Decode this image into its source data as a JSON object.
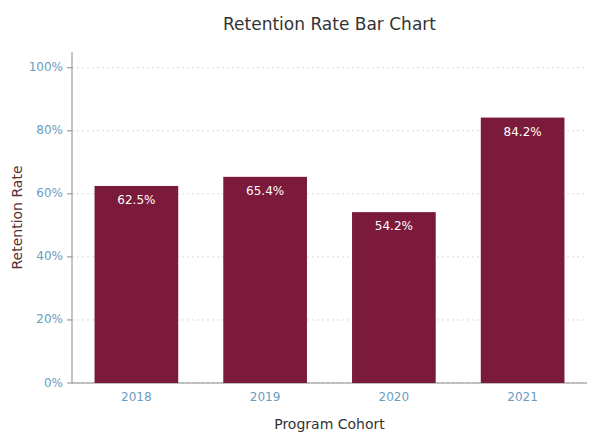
{
  "chart_data": {
    "type": "bar",
    "title": "Retention Rate Bar Chart",
    "x_label": "Program Cohort",
    "y_label": "Retention Rate",
    "categories": [
      "2018",
      "2019",
      "2020",
      "2021"
    ],
    "values": [
      62.5,
      65.4,
      54.2,
      84.2
    ],
    "value_labels": [
      "62.5%",
      "65.4%",
      "54.2%",
      "84.2%"
    ],
    "color": "#7B1A3A",
    "ylim": [
      0,
      105
    ],
    "yticks": [
      {
        "value": 0,
        "label": "0%"
      },
      {
        "value": 20,
        "label": "20%"
      },
      {
        "value": 40,
        "label": "40%"
      },
      {
        "value": 60,
        "label": "60%"
      },
      {
        "value": 80,
        "label": "80%"
      },
      {
        "value": 100,
        "label": "100%"
      }
    ],
    "grid": true,
    "data_labels": true
  }
}
